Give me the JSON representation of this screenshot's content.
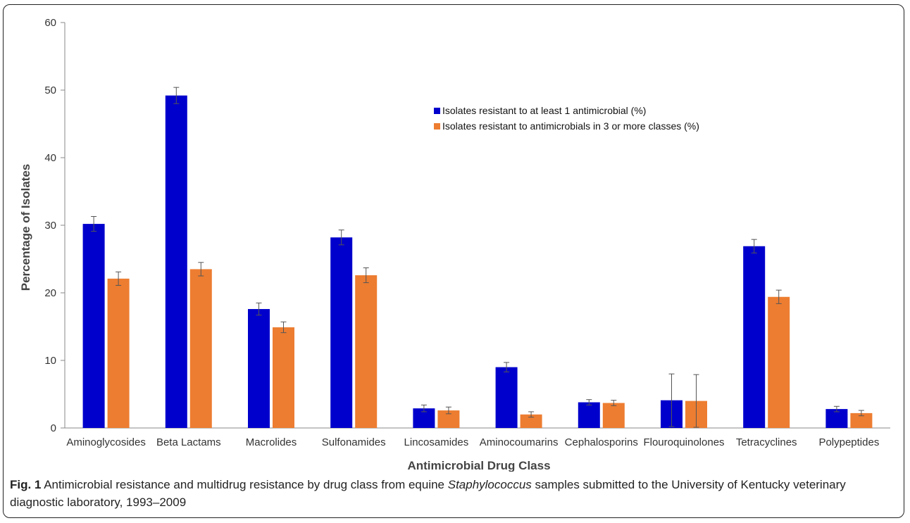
{
  "chart_data": {
    "type": "bar",
    "xlabel": "Antimicrobial Drug Class",
    "ylabel": "Percentage of Isolates",
    "ylim": [
      0,
      60
    ],
    "yticks": [
      0,
      10,
      20,
      30,
      40,
      50,
      60
    ],
    "categories": [
      "Aminoglycosides",
      "Beta Lactams",
      "Macrolides",
      "Sulfonamides",
      "Lincosamides",
      "Aminocoumarins",
      "Cephalosporins",
      "Flouroquinolones",
      "Tetracyclines",
      "Polypeptides"
    ],
    "legend_position": "top-right",
    "grid": false,
    "series": [
      {
        "name": "Isolates resistant to at least 1 antimicrobial (%)",
        "color": "#0000cc",
        "values": [
          30.2,
          49.2,
          17.6,
          28.2,
          2.9,
          9.0,
          3.8,
          4.1,
          26.9,
          2.8
        ],
        "error": [
          1.1,
          1.2,
          0.9,
          1.1,
          0.5,
          0.7,
          0.4,
          3.9,
          1.0,
          0.4
        ]
      },
      {
        "name": "Isolates resistant to antimicrobials in 3 or more classes (%)",
        "color": "#ed7d31",
        "values": [
          22.1,
          23.5,
          14.9,
          22.6,
          2.6,
          2.0,
          3.7,
          4.0,
          19.4,
          2.2
        ],
        "error": [
          1.0,
          1.0,
          0.8,
          1.1,
          0.5,
          0.4,
          0.4,
          3.9,
          1.0,
          0.4
        ]
      }
    ]
  },
  "caption": {
    "label": "Fig. 1",
    "text_before": " Antimicrobial resistance and multidrug resistance by drug class from equine ",
    "genus": "Staphylococcus",
    "text_after": " samples submitted to the University of Kentucky veterinary diagnostic laboratory, 1993–2009"
  }
}
